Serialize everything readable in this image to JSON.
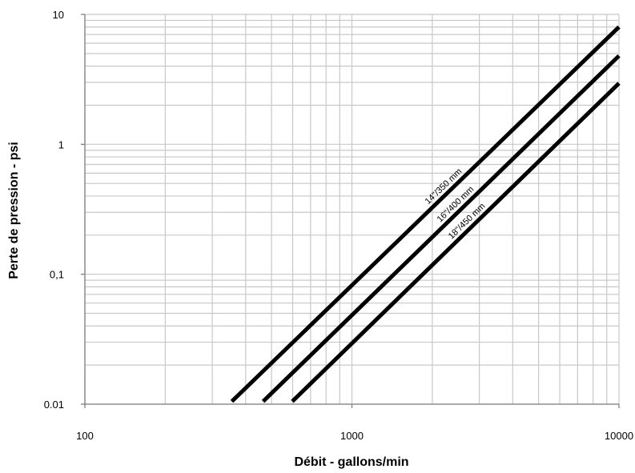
{
  "chart_data": {
    "type": "line",
    "xlabel": "Débit - gallons/min",
    "ylabel": "Perte de pression - psi",
    "x_scale": "log",
    "y_scale": "log",
    "xlim": [
      100,
      10000
    ],
    "ylim": [
      0.01,
      10
    ],
    "x_ticks": [
      {
        "value": 100,
        "label": "100"
      },
      {
        "value": 1000,
        "label": "1000"
      },
      {
        "value": 10000,
        "label": "10000"
      }
    ],
    "y_ticks": [
      {
        "value": 0.01,
        "label": "0.01"
      },
      {
        "value": 0.1,
        "label": "0,1"
      },
      {
        "value": 1,
        "label": "1"
      },
      {
        "value": 10,
        "label": "10"
      }
    ],
    "grid": true,
    "series": [
      {
        "name": "14\"/350 mm",
        "x": [
          355,
          10000
        ],
        "y": [
          0.0105,
          8.0
        ]
      },
      {
        "name": "16\"/400 mm",
        "x": [
          465,
          10000
        ],
        "y": [
          0.0105,
          4.8
        ]
      },
      {
        "name": "18\"/450 mm",
        "x": [
          598,
          10000
        ],
        "y": [
          0.0105,
          2.95
        ]
      }
    ]
  }
}
